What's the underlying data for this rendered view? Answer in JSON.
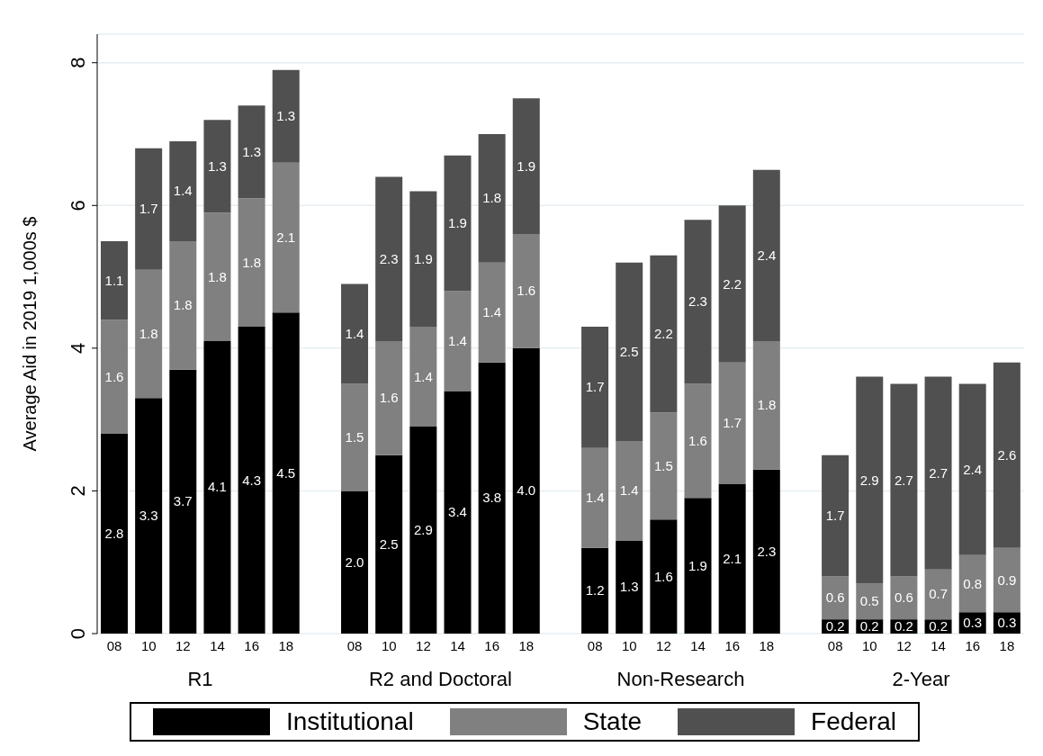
{
  "chart_data": {
    "type": "bar",
    "stacked": true,
    "ylabel": "Average Aid in 2019 1,000s $",
    "categories": [
      "08",
      "10",
      "12",
      "14",
      "16",
      "18",
      null,
      "08",
      "10",
      "12",
      "14",
      "16",
      "18",
      null,
      "08",
      "10",
      "12",
      "14",
      "16",
      "18",
      null,
      "08",
      "10",
      "12",
      "14",
      "16",
      "18"
    ],
    "annotations": [
      "R1",
      "R2 and Doctoral",
      "Non-Research",
      "2-Year"
    ],
    "series": [
      {
        "name": "Institutional",
        "color": "#000000",
        "values": [
          2.8,
          3.3,
          3.7,
          4.1,
          4.3,
          4.5,
          null,
          2.0,
          2.5,
          2.9,
          3.4,
          3.8,
          4.0,
          null,
          1.2,
          1.3,
          1.6,
          1.9,
          2.1,
          2.3,
          null,
          0.2,
          0.2,
          0.2,
          0.2,
          0.3,
          0.3
        ],
        "value_labels": [
          "2.8",
          "3.3",
          "3.7",
          "4.1",
          "4.3",
          "4.5",
          null,
          "2.0",
          "2.5",
          "2.9",
          "3.4",
          "3.8",
          "4.0",
          null,
          "1.2",
          "1.3",
          "1.6",
          "1.9",
          "2.1",
          "2.3",
          null,
          "0.2",
          "0.2",
          "0.2",
          "0.2",
          "0.3",
          "0.3"
        ]
      },
      {
        "name": "State",
        "color": "#808080",
        "values": [
          1.6,
          1.8,
          1.8,
          1.8,
          1.8,
          2.1,
          null,
          1.5,
          1.6,
          1.4,
          1.4,
          1.4,
          1.6,
          null,
          1.4,
          1.4,
          1.5,
          1.6,
          1.7,
          1.8,
          null,
          0.6,
          0.5,
          0.6,
          0.7,
          0.8,
          0.9
        ],
        "value_labels": [
          "1.6",
          "1.8",
          "1.8",
          "1.8",
          "1.8",
          "2.1",
          null,
          "1.5",
          "1.6",
          "1.4",
          "1.4",
          "1.4",
          "1.6",
          null,
          "1.4",
          "1.4",
          "1.5",
          "1.6",
          "1.7",
          "1.8",
          null,
          "0.6",
          "0.5",
          "0.6",
          "0.7",
          "0.8",
          "0.9"
        ]
      },
      {
        "name": "Federal",
        "color": "#505050",
        "values": [
          1.1,
          1.7,
          1.4,
          1.3,
          1.3,
          1.3,
          null,
          1.4,
          2.3,
          1.9,
          1.9,
          1.8,
          1.9,
          null,
          1.7,
          2.5,
          2.2,
          2.3,
          2.2,
          2.4,
          null,
          1.7,
          2.9,
          2.7,
          2.7,
          2.4,
          2.6
        ],
        "value_labels": [
          "1.1",
          "1.7",
          "1.4",
          "1.3",
          "1.3",
          "1.3",
          null,
          "1.4",
          "2.3",
          "1.9",
          "1.9",
          "1.8",
          "1.9",
          null,
          "1.7",
          "2.5",
          "2.2",
          "2.3",
          "2.2",
          "2.4",
          null,
          "1.7",
          "2.9",
          "2.7",
          "2.7",
          "2.4",
          "2.6"
        ]
      }
    ],
    "ylim": [
      0,
      8.4
    ],
    "yticks": [
      0,
      2,
      4,
      6,
      8
    ],
    "grid": "y",
    "legend": "bottom"
  }
}
